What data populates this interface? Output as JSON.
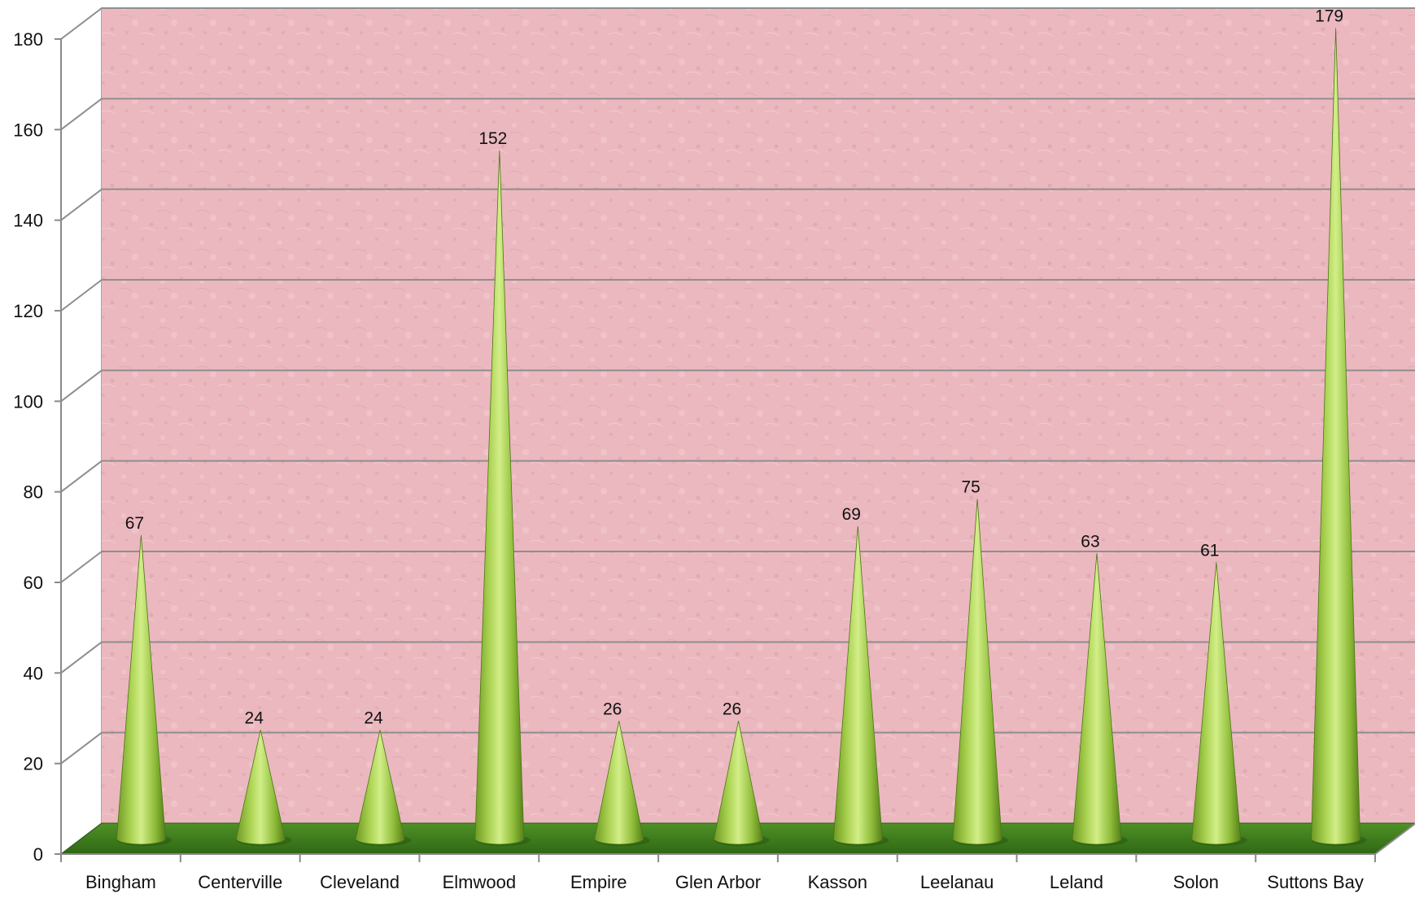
{
  "chart_data": {
    "type": "bar",
    "bar_shape": "cone",
    "categories": [
      "Bingham",
      "Centerville",
      "Cleveland",
      "Elmwood",
      "Empire",
      "Glen Arbor",
      "Kasson",
      "Leelanau",
      "Leland",
      "Solon",
      "Suttons Bay"
    ],
    "values": [
      67,
      24,
      24,
      152,
      26,
      26,
      69,
      75,
      63,
      61,
      179
    ],
    "data_labels": [
      "67",
      "24",
      "24",
      "152",
      "26",
      "26",
      "69",
      "75",
      "63",
      "61",
      "179"
    ],
    "title": "",
    "xlabel": "",
    "ylabel": "",
    "ylim": [
      0,
      180
    ],
    "y_ticks": [
      0,
      20,
      40,
      60,
      80,
      100,
      120,
      140,
      160,
      180
    ],
    "y_tick_labels": [
      "0",
      "20",
      "40",
      "60",
      "80",
      "100",
      "120",
      "140",
      "160",
      "180"
    ],
    "grid": true,
    "legend": "none",
    "colors": {
      "back_wall": "#ebb8bf",
      "floor": "#3f7d1e",
      "cone_light": "#d2ee88",
      "cone_dark": "#5c8a1e",
      "gridline": "#8e8e8e",
      "axis": "#8a8a8a"
    }
  }
}
